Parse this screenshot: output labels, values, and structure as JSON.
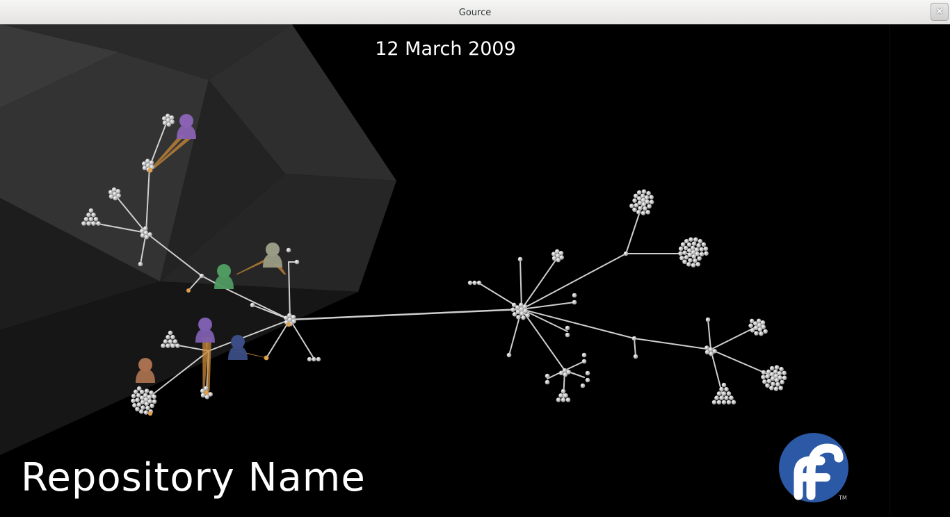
{
  "window": {
    "title": "Gource",
    "close_label": "×"
  },
  "visualization": {
    "date": "12 March 2009",
    "repository_name": "Repository Name",
    "logo_trademark": "TM"
  },
  "colors": {
    "background": "#000000",
    "edge": "#cfcfcf",
    "file_node": "#d9d9d9",
    "active_file": "#e0a050",
    "users": [
      "#8a62b3",
      "#4f9a61",
      "#9a9b84",
      "#7d5eaf",
      "#3b4d84",
      "#a8704e"
    ],
    "fedora_blue": "#2c59a6"
  }
}
